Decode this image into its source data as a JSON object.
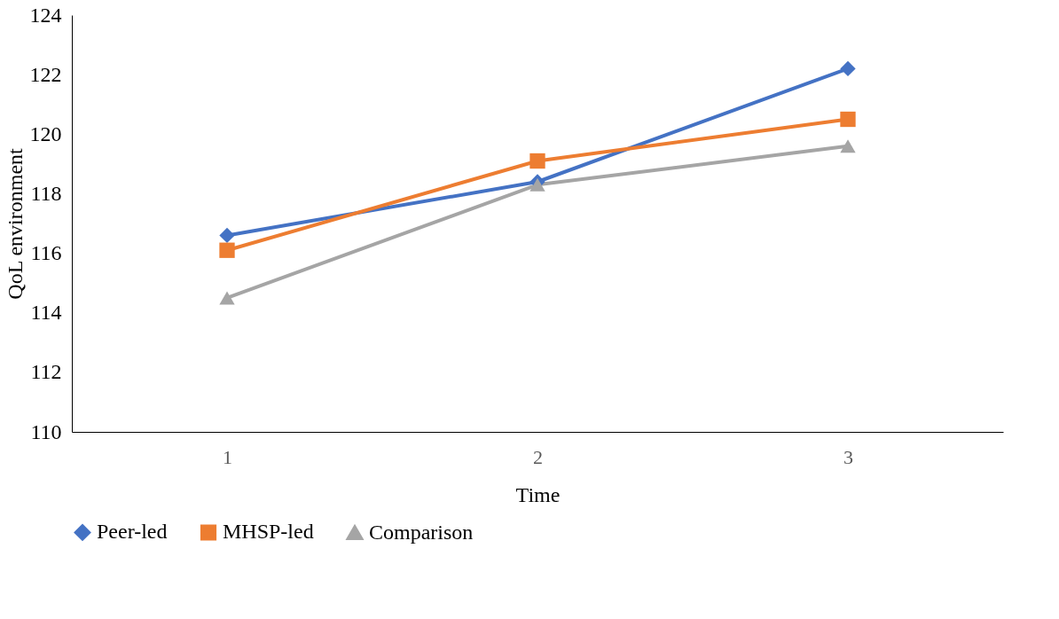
{
  "chart_data": {
    "type": "line",
    "xlabel": "Time",
    "ylabel": "QoL environment",
    "categories": [
      "1",
      "2",
      "3"
    ],
    "ylim": [
      110,
      124
    ],
    "yticks": [
      110,
      112,
      114,
      116,
      118,
      120,
      122,
      124
    ],
    "grid": false,
    "legend": "bottom",
    "line_style": "solid",
    "series": [
      {
        "name": "Peer-led",
        "color": "#4472c4",
        "marker": "diamond",
        "values": [
          116.6,
          118.4,
          122.2
        ]
      },
      {
        "name": "MHSP-led",
        "color": "#ed7d31",
        "marker": "square",
        "values": [
          116.1,
          119.1,
          120.5
        ]
      },
      {
        "name": "Comparison",
        "color": "#a5a5a5",
        "marker": "triangle",
        "values": [
          114.5,
          118.3,
          119.6
        ]
      }
    ]
  }
}
